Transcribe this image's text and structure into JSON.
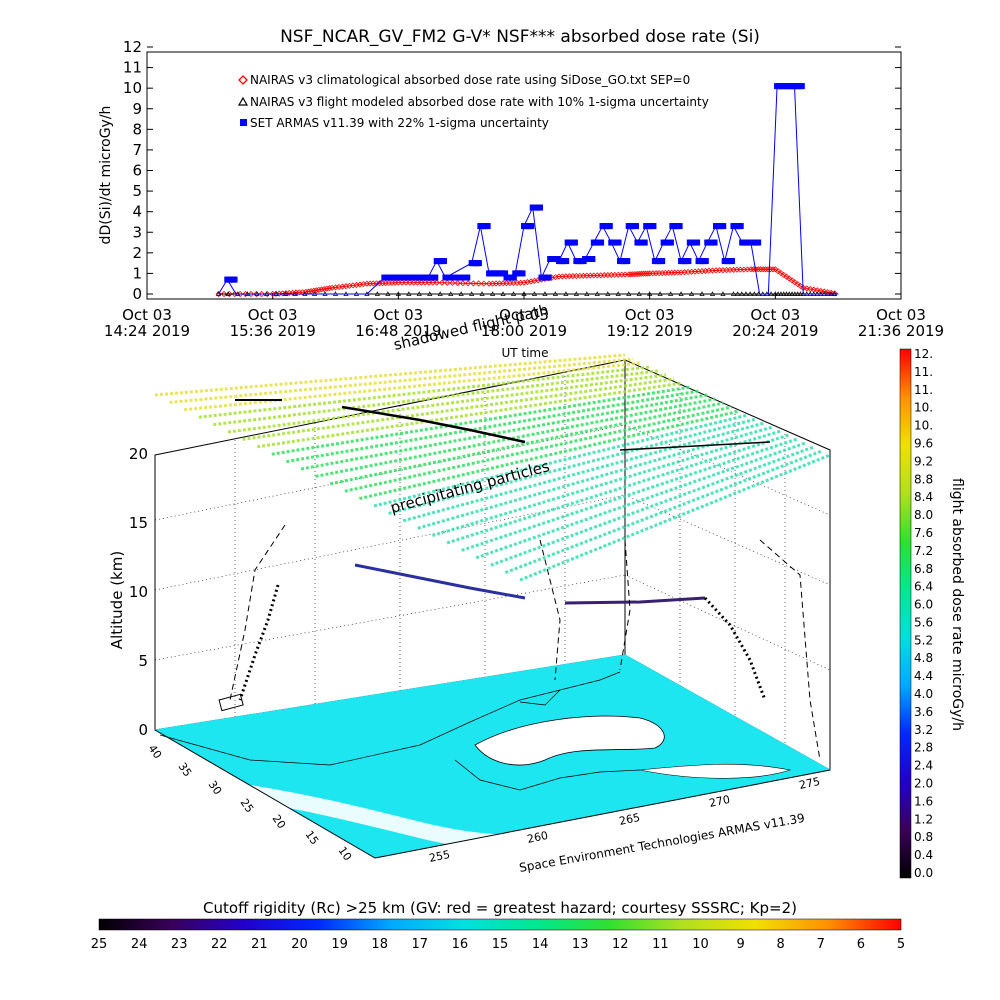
{
  "title": "NSF_NCAR_GV_FM2 G-V* NSF*** absorbed dose rate (Si)",
  "chart_data": [
    {
      "type": "line",
      "ylabel": "dD(Si)/dt microGy/h",
      "xlabel": "UT time",
      "ylim": [
        0,
        12
      ],
      "yticks": [
        "0",
        "1",
        "2",
        "3",
        "4",
        "5",
        "6",
        "7",
        "8",
        "9",
        "10",
        "11",
        "12"
      ],
      "xticks": [
        {
          "date": "Oct 03",
          "time": "14:24 2019"
        },
        {
          "date": "Oct 03",
          "time": "15:36 2019"
        },
        {
          "date": "Oct 03",
          "time": "16:48 2019"
        },
        {
          "date": "Oct 03",
          "time": "18:00 2019"
        },
        {
          "date": "Oct 03",
          "time": "19:12 2019"
        },
        {
          "date": "Oct 03",
          "time": "20:24 2019"
        },
        {
          "date": "Oct 03",
          "time": "21:36 2019"
        }
      ],
      "xlim": [
        "14:24",
        "21:36"
      ],
      "legend_position": "top-left",
      "series": [
        {
          "name": "NAIRAS v3 climatological absorbed dose rate using SiDose_GO.txt SEP=0",
          "color": "#ff0000",
          "marker": "diamond",
          "x": [
            "15:05",
            "15:36",
            "15:55",
            "16:10",
            "16:30",
            "16:48",
            "17:10",
            "17:40",
            "18:00",
            "18:20",
            "18:40",
            "19:00",
            "19:12",
            "19:30",
            "19:50",
            "20:10",
            "20:24",
            "20:40",
            "21:00"
          ],
          "values": [
            0,
            0,
            0.1,
            0.3,
            0.5,
            0.55,
            0.55,
            0.5,
            0.55,
            0.85,
            0.9,
            0.95,
            1.0,
            1.05,
            1.15,
            1.2,
            1.2,
            0.3,
            0
          ]
        },
        {
          "name": "NAIRAS v3 flight modeled absorbed dose rate with 10% 1-sigma uncertainty",
          "color": "#000000",
          "marker": "triangle",
          "x": [
            "15:05",
            "16:00",
            "17:00",
            "18:00",
            "19:00",
            "20:00",
            "20:24",
            "20:40",
            "21:00"
          ],
          "values": [
            0,
            0,
            0,
            0,
            0,
            0,
            0,
            0,
            0
          ]
        },
        {
          "name": "SET ARMAS v11.39 with 22% 1-sigma uncertainty",
          "color": "#0000ff",
          "marker": "square",
          "x": [
            "15:05",
            "15:10",
            "15:15",
            "16:30",
            "16:40",
            "16:50",
            "17:00",
            "17:05",
            "17:10",
            "17:15",
            "17:30",
            "17:35",
            "17:40",
            "17:45",
            "17:50",
            "17:55",
            "18:00",
            "18:05",
            "18:10",
            "18:15",
            "18:20",
            "18:25",
            "18:30",
            "18:35",
            "18:40",
            "18:45",
            "18:50",
            "18:55",
            "19:00",
            "19:05",
            "19:10",
            "19:15",
            "19:20",
            "19:25",
            "19:30",
            "19:35",
            "19:40",
            "19:45",
            "19:50",
            "19:55",
            "20:00",
            "20:05",
            "20:10",
            "20:15",
            "20:20",
            "20:25",
            "20:30",
            "20:35",
            "20:40",
            "21:00"
          ],
          "values": [
            0,
            0.7,
            0,
            0,
            0.8,
            0.8,
            0.8,
            0.8,
            1.6,
            0.8,
            1.5,
            3.3,
            1.0,
            1.0,
            0.8,
            1.0,
            3.3,
            4.2,
            0.8,
            1.7,
            1.6,
            2.5,
            1.6,
            1.7,
            2.5,
            3.3,
            2.5,
            1.6,
            3.3,
            2.5,
            3.3,
            1.6,
            2.5,
            3.3,
            1.6,
            2.5,
            1.6,
            2.5,
            3.3,
            1.6,
            3.3,
            2.5,
            2.5,
            0,
            0,
            10.1,
            10.1,
            10.1,
            0,
            0
          ]
        }
      ]
    },
    {
      "type": "3d-trajectory-map",
      "zlabel": "Altitude (km)",
      "zticks": [
        "0",
        "5",
        "10",
        "15",
        "20"
      ],
      "lat_ticks": [
        "40",
        "35",
        "30",
        "25",
        "20",
        "15",
        "10"
      ],
      "lon_ticks": [
        "255",
        "260",
        "265",
        "270",
        "275"
      ],
      "annotations": [
        "shadowed flight path",
        "precipitating particles",
        "UT time"
      ],
      "credit": "Space Environment Technologies ARMAS v11.39",
      "colorbar": {
        "label": "flight absorbed dose rate microGy/h",
        "ticks": [
          "0.0",
          "0.4",
          "0.8",
          "1.2",
          "1.6",
          "2.0",
          "2.4",
          "2.8",
          "3.2",
          "3.6",
          "4.0",
          "4.4",
          "4.8",
          "5.2",
          "5.6",
          "6.0",
          "6.4",
          "6.8",
          "7.2",
          "7.6",
          "8.0",
          "8.4",
          "8.8",
          "9.2",
          "9.6",
          "10.",
          "10.",
          "11.",
          "11.",
          "12."
        ]
      }
    },
    {
      "type": "colorbar",
      "title": "Cutoff rigidity (Rc) >25 km (GV: red = greatest hazard; courtesy SSSRC; Kp=2)",
      "ticks": [
        "25",
        "24",
        "23",
        "22",
        "21",
        "20",
        "19",
        "18",
        "17",
        "16",
        "15",
        "14",
        "13",
        "12",
        "11",
        "10",
        "9",
        "8",
        "7",
        "6",
        "5"
      ]
    }
  ],
  "colors": {
    "nairas_clim": "#ff0000",
    "armas": "#0000ff",
    "ground_fill": "#1ee6f0",
    "colormap": [
      "#000000",
      "#3a005a",
      "#2200cc",
      "#0028ff",
      "#00a8ff",
      "#00e0e0",
      "#00e890",
      "#30e030",
      "#b0e020",
      "#f0e000",
      "#ff9000",
      "#ff0000"
    ]
  }
}
